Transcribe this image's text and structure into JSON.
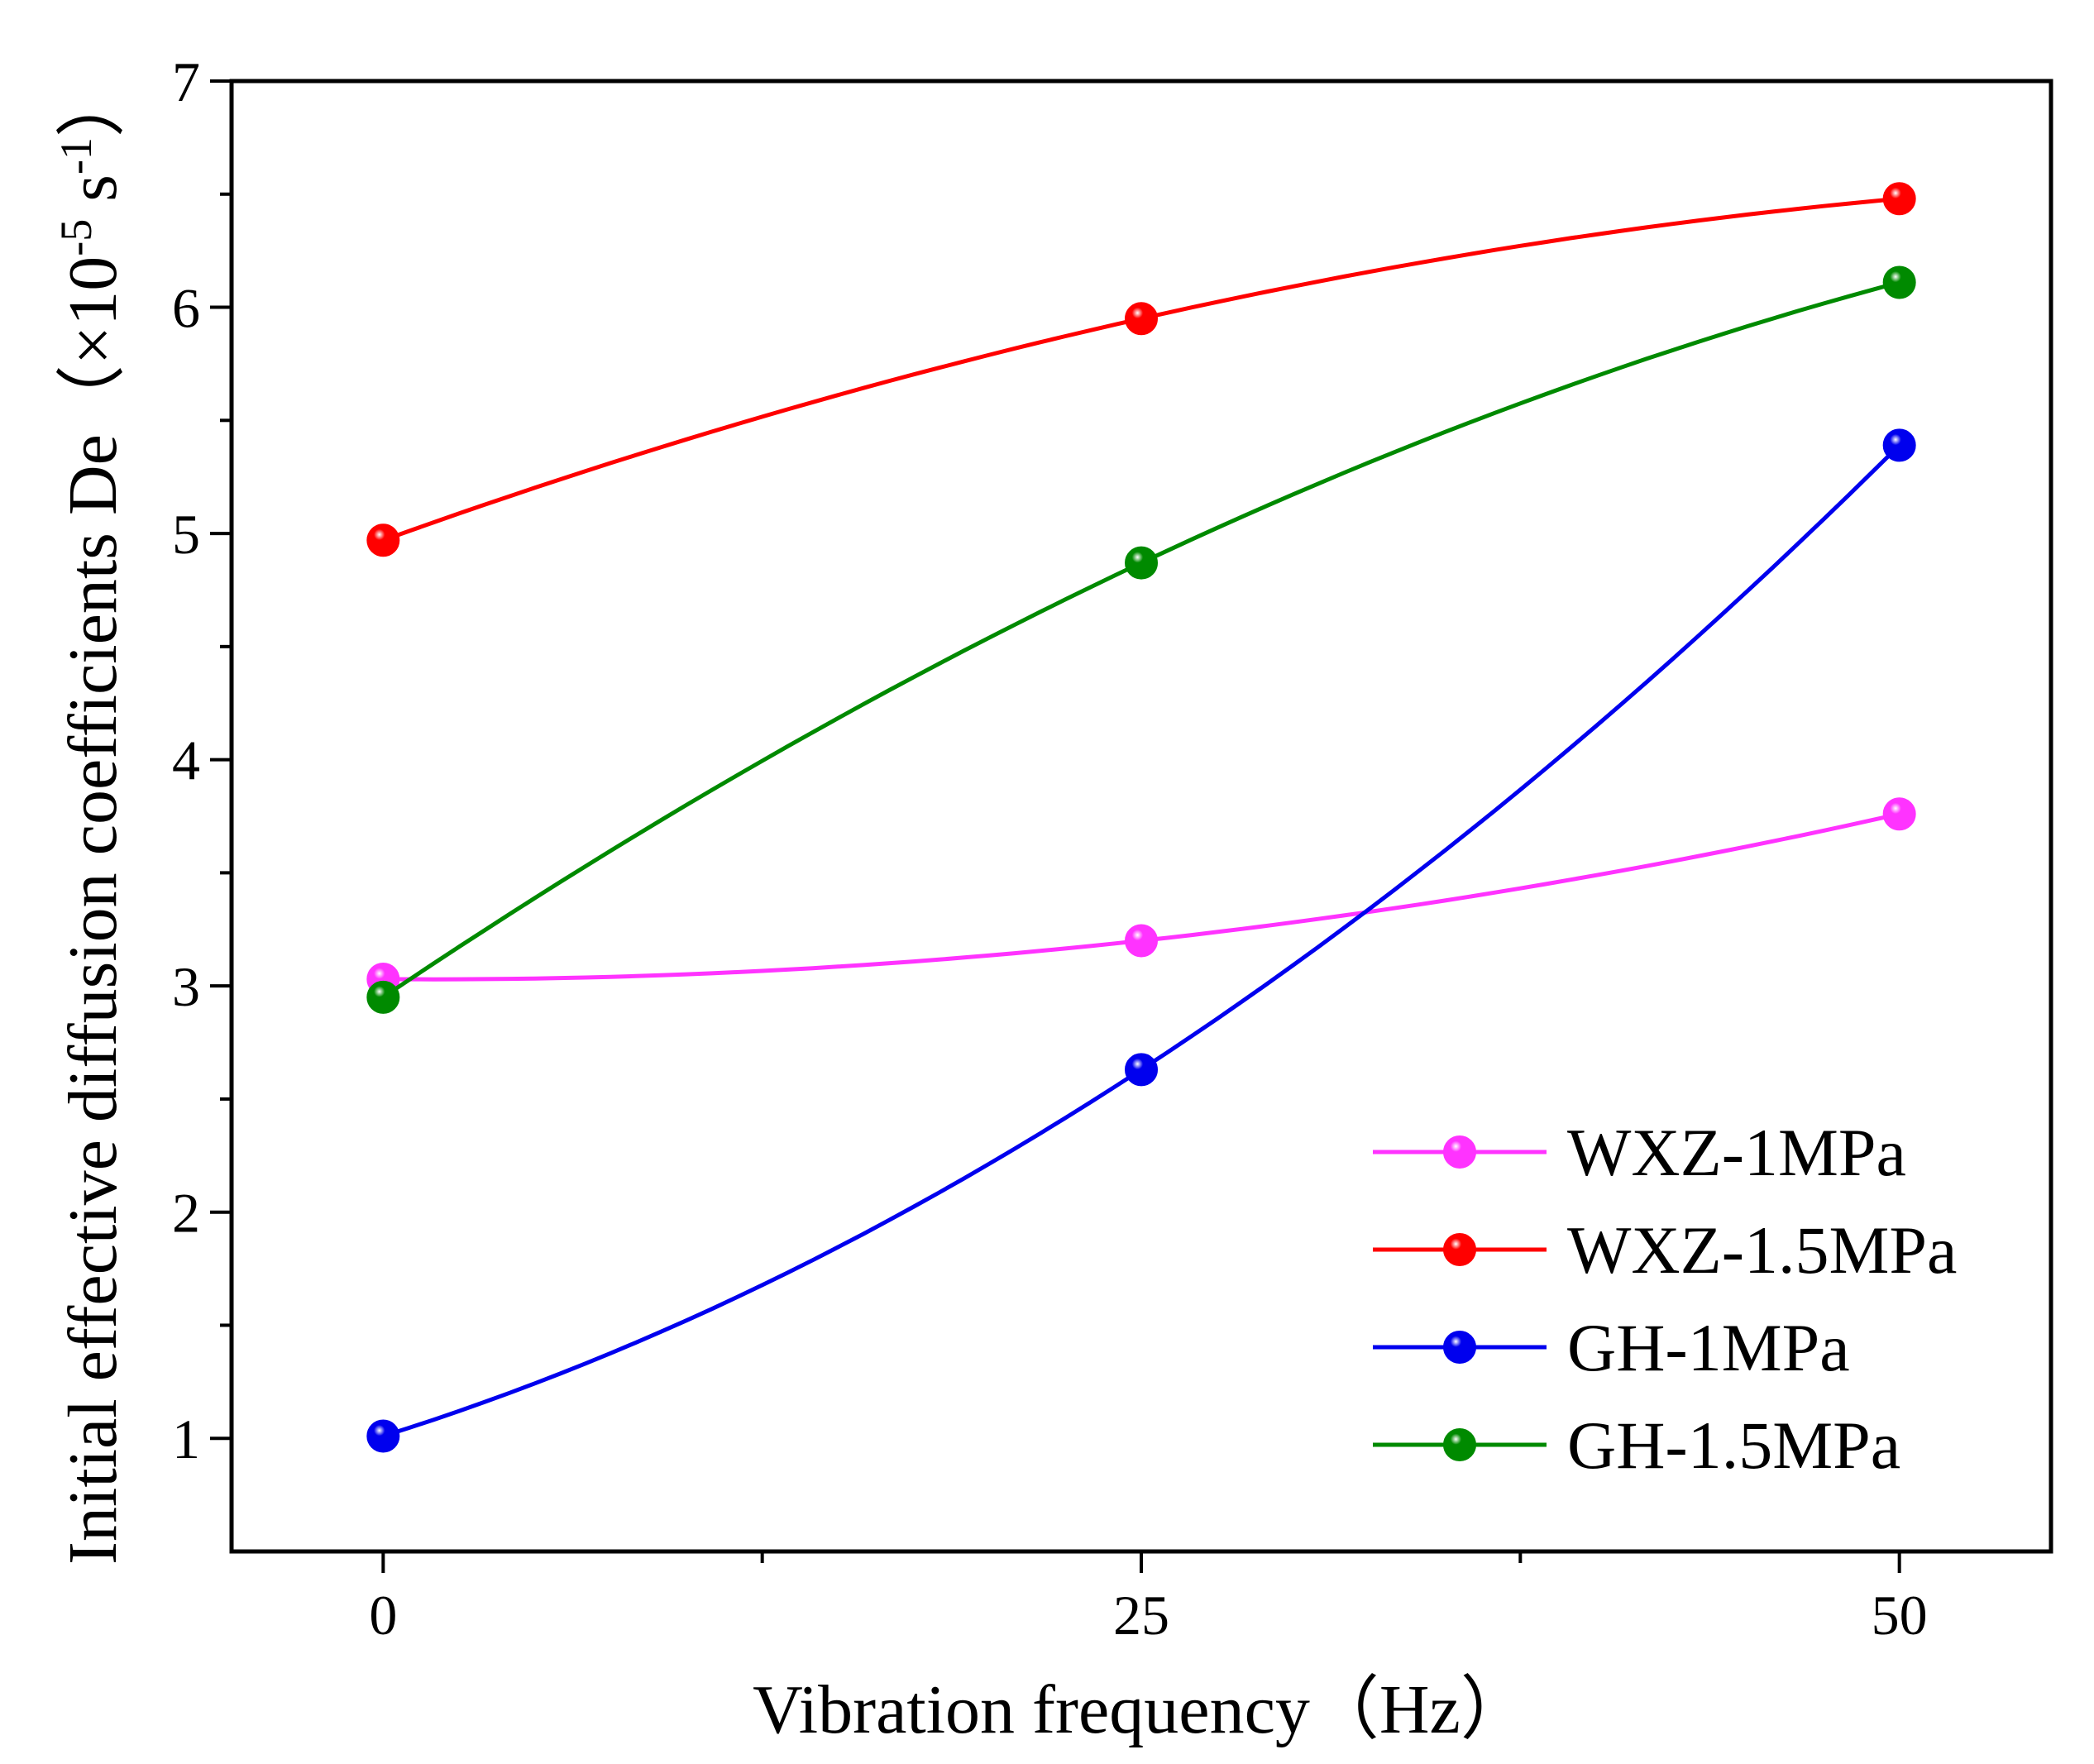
{
  "chart_data": {
    "type": "line",
    "title": "",
    "xlabel": "Vibration frequency（Hz）",
    "ylabel": "Initial effective diffusion coefficients De（×10⁻⁵ s⁻¹）",
    "ylabel_parts": {
      "main": "Initial effective diffusion coefficients De（×10",
      "exp1": "-5",
      "mid": " s",
      "exp2": "-1",
      "end": "）"
    },
    "x": [
      0,
      25,
      50
    ],
    "x_ticks": [
      "0",
      "25",
      "50"
    ],
    "xlim": [
      -5,
      55
    ],
    "ylim": [
      0.5,
      7
    ],
    "y_ticks": [
      "1",
      "2",
      "3",
      "4",
      "5",
      "6",
      "7"
    ],
    "grid": false,
    "legend_position": "bottom-right",
    "series": [
      {
        "name": "WXZ-1MPa",
        "color": "#ff33ff",
        "values": [
          3.03,
          3.2,
          3.76
        ]
      },
      {
        "name": "WXZ-1.5MPa",
        "color": "#ff0000",
        "values": [
          4.97,
          5.95,
          6.48
        ]
      },
      {
        "name": "GH-1MPa",
        "color": "#0000ee",
        "values": [
          1.01,
          2.63,
          5.39
        ]
      },
      {
        "name": "GH-1.5MPa",
        "color": "#008a00",
        "values": [
          2.95,
          4.87,
          6.11
        ]
      }
    ]
  }
}
